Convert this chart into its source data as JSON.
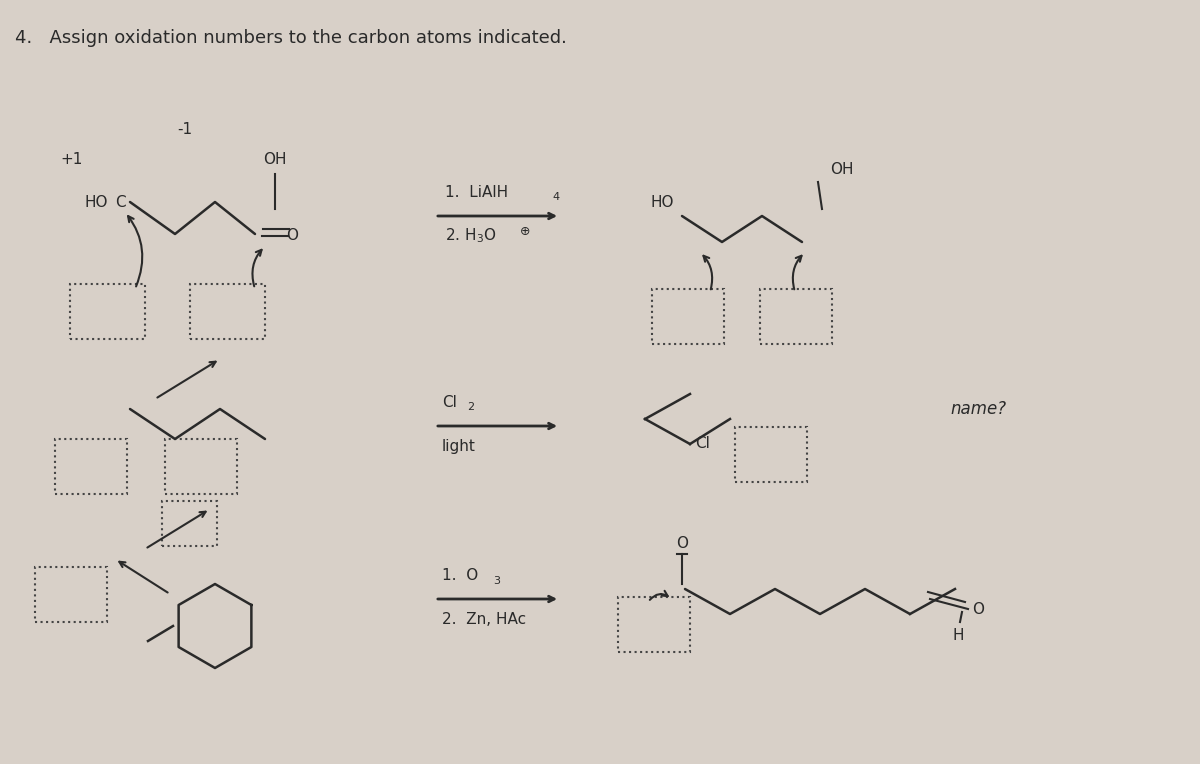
{
  "title": "4.   Assign oxidation numbers to the carbon atoms indicated.",
  "background_color": "#d8d0c8",
  "text_color": "#2a2a2a",
  "arrow_color": "#2a2a2a",
  "reaction1_label1": "1.  LiAlH",
  "reaction1_label1_sub": "4",
  "reaction1_label2": "2. H₃O",
  "reaction1_label2_plus": "⊕",
  "reaction2_label1": "Cl₂",
  "reaction2_label2": "light",
  "reaction3_label1": "1.  O₃",
  "reaction3_label2": "2.  Zn, HAc",
  "name_label": "name?",
  "plus1_label": "+1",
  "minus1_label": "-1",
  "ho_label": "HO",
  "c_label": "C",
  "oh_label1": "OH",
  "oh_label2": "OH",
  "ho_label2": "HO",
  "cl_label": "Cl",
  "o_label": "O",
  "h_label": "H"
}
